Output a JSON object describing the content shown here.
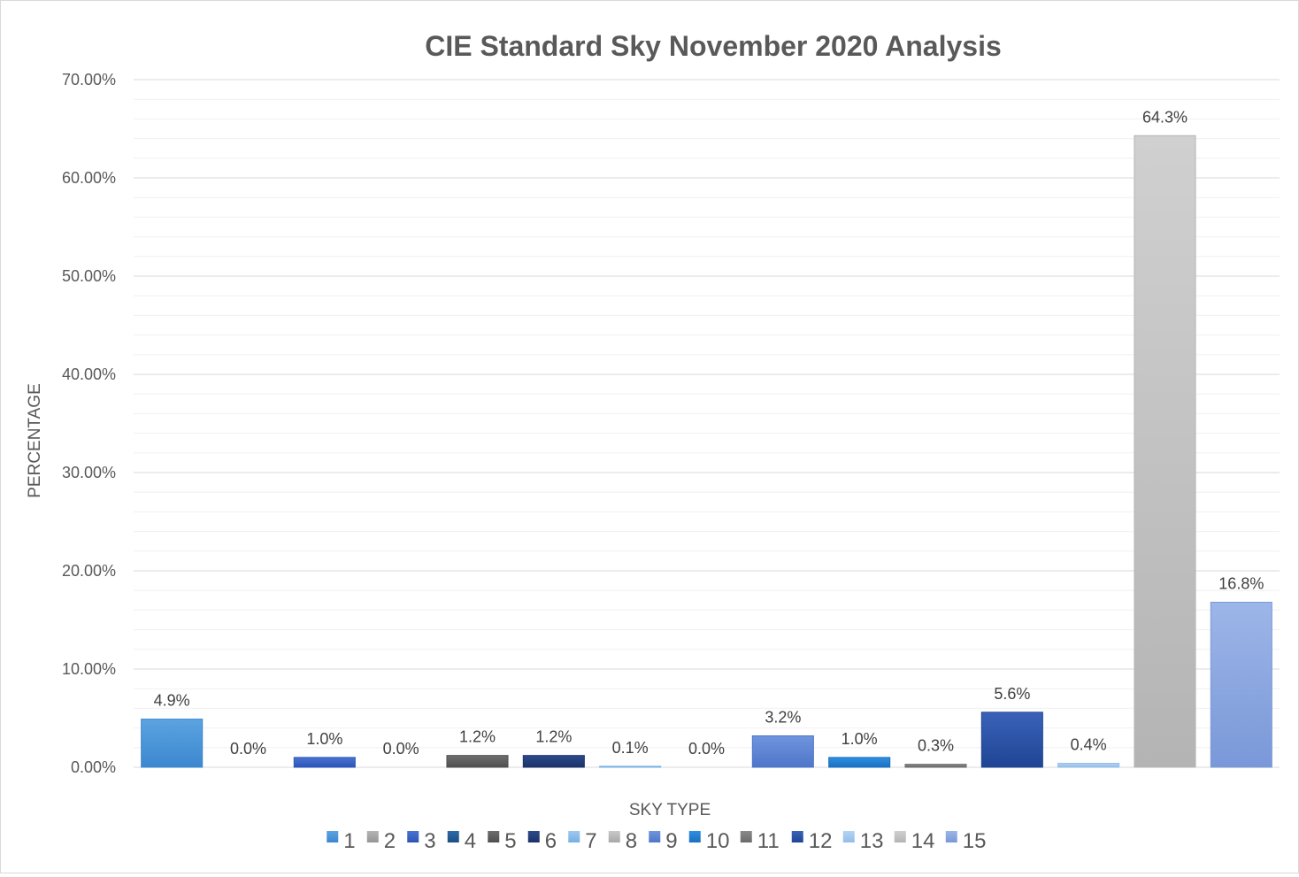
{
  "chart_data": {
    "type": "bar",
    "title": "CIE Standard Sky November 2020 Analysis",
    "xlabel": "SKY TYPE",
    "ylabel": "PERCENTAGE",
    "categories": [
      "1",
      "2",
      "3",
      "4",
      "5",
      "6",
      "7",
      "8",
      "9",
      "10",
      "11",
      "12",
      "13",
      "14",
      "15"
    ],
    "values": [
      4.9,
      0.0,
      1.0,
      0.0,
      1.2,
      1.2,
      0.1,
      0.0,
      3.2,
      1.0,
      0.3,
      5.6,
      0.4,
      64.3,
      16.8
    ],
    "data_labels": [
      "4.9%",
      "0.0%",
      "1.0%",
      "0.0%",
      "1.2%",
      "1.2%",
      "0.1%",
      "0.0%",
      "3.2%",
      "1.0%",
      "0.3%",
      "5.6%",
      "0.4%",
      "64.3%",
      "16.8%"
    ],
    "ylim": [
      0,
      70
    ],
    "y_ticks": [
      0,
      10,
      20,
      30,
      40,
      50,
      60,
      70
    ],
    "y_tick_labels": [
      "0.00%",
      "10.00%",
      "20.00%",
      "30.00%",
      "40.00%",
      "50.00%",
      "60.00%",
      "70.00%"
    ],
    "grid": true,
    "legend_position": "bottom",
    "colors": {
      "1": [
        "#5ba3e0",
        "#3c87cf"
      ],
      "2": [
        "#b5b5b5",
        "#969696"
      ],
      "3": [
        "#4a72d0",
        "#2d55b8"
      ],
      "4": [
        "#2c6aa8",
        "#1d4f82"
      ],
      "5": [
        "#6e6e6e",
        "#4f4f4f"
      ],
      "6": [
        "#2b4a8c",
        "#1c3268"
      ],
      "7": [
        "#9cc8ee",
        "#76b0e4"
      ],
      "8": [
        "#c8c8c8",
        "#a8a8a8"
      ],
      "9": [
        "#6f95de",
        "#4f76c8"
      ],
      "10": [
        "#2f8fe0",
        "#1a6fc0"
      ],
      "11": [
        "#8a8a8a",
        "#6a6a6a"
      ],
      "12": [
        "#3a63b8",
        "#1f4494"
      ],
      "13": [
        "#b4d4f2",
        "#94bde8"
      ],
      "14": [
        "#d0d0d0",
        "#b4b4b4"
      ],
      "15": [
        "#9db6e8",
        "#7a98d8"
      ]
    }
  }
}
